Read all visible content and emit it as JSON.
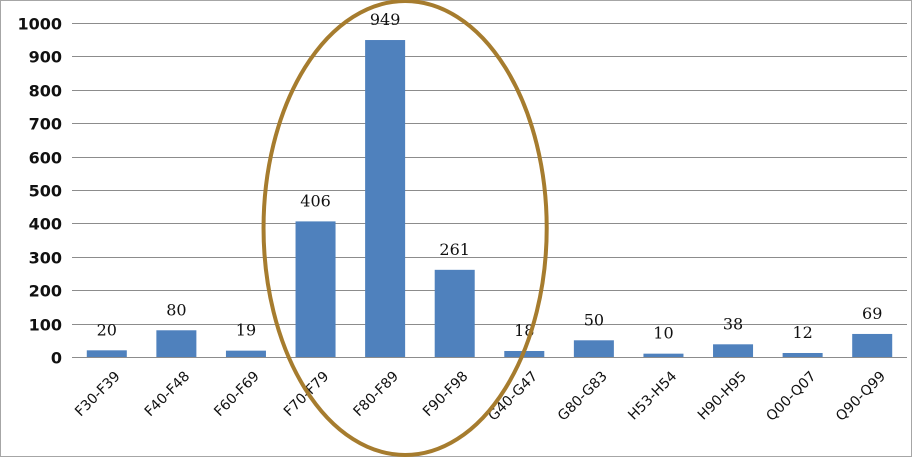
{
  "chart_data": {
    "type": "bar",
    "categories": [
      "F30-F39",
      "F40-F48",
      "F60-F69",
      "F70-F79",
      "F80-F89",
      "F90-F98",
      "G40-G47",
      "G80-G83",
      "H53-H54",
      "H90-H95",
      "Q00-Q07",
      "Q90-Q99"
    ],
    "values": [
      20,
      80,
      19,
      406,
      949,
      261,
      18,
      50,
      10,
      38,
      12,
      69
    ],
    "title": "",
    "xlabel": "",
    "ylabel": "",
    "ylim": [
      0,
      1000
    ],
    "yticks": [
      0,
      100,
      200,
      300,
      400,
      500,
      600,
      700,
      800,
      900,
      1000
    ],
    "grid": true,
    "legend": "none",
    "bar_color": "#4f81bd",
    "highlight": {
      "shape": "ellipse",
      "color": "#a67c2e",
      "covers": [
        "F70-F79",
        "F80-F89",
        "F90-F98"
      ]
    }
  }
}
